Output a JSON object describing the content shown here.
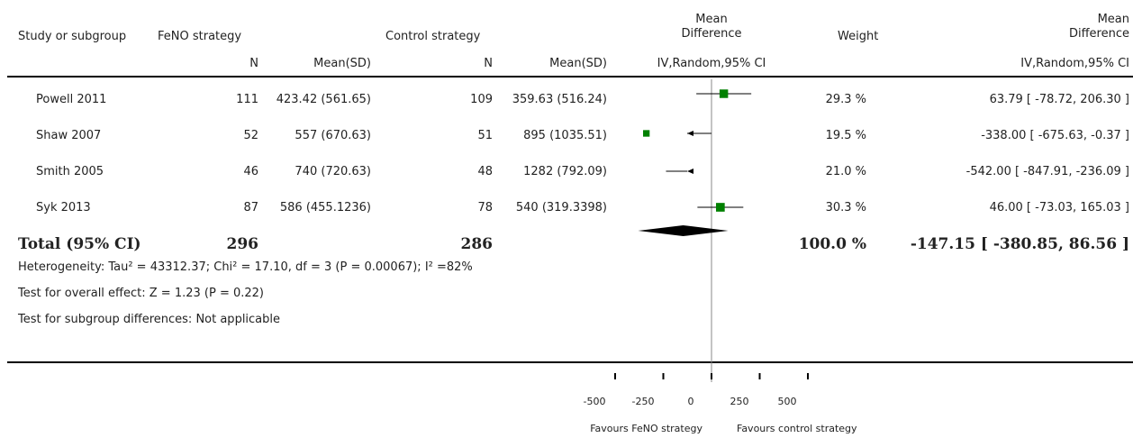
{
  "header": {
    "study": "Study or subgroup",
    "fenoGroup": "FeNO strategy",
    "controlGroup": "Control strategy",
    "md1": "Mean",
    "md2": "Difference",
    "weight": "Weight",
    "mdR1": "Mean",
    "mdR2": "Difference",
    "n1": "N",
    "meansd1": "Mean(SD)",
    "n2": "N",
    "meansd2": "Mean(SD)",
    "method": "IV,Random,95% CI",
    "methodR": "IV,Random,95% CI"
  },
  "studies": [
    {
      "name": "Powell 2011",
      "n1": "111",
      "ms1": "423.42 (561.65)",
      "n2": "109",
      "ms2": "359.63 (516.24)",
      "weight": "29.3 %",
      "ci": "63.79 [ -78.72, 206.30 ]"
    },
    {
      "name": "Shaw 2007",
      "n1": "52",
      "ms1": "557 (670.63)",
      "n2": "51",
      "ms2": "895 (1035.51)",
      "weight": "19.5 %",
      "ci": "-338.00 [ -675.63, -0.37 ]"
    },
    {
      "name": "Smith 2005",
      "n1": "46",
      "ms1": "740 (720.63)",
      "n2": "48",
      "ms2": "1282 (792.09)",
      "weight": "21.0 %",
      "ci": "-542.00 [ -847.91, -236.09 ]"
    },
    {
      "name": "Syk 2013",
      "n1": "87",
      "ms1": "586 (455.1236)",
      "n2": "78",
      "ms2": "540 (319.3398)",
      "weight": "30.3 %",
      "ci": "46.00 [ -73.03, 165.03 ]"
    }
  ],
  "total": {
    "label": "Total (95% CI)",
    "n1": "296",
    "n2": "286",
    "weight": "100.0 %",
    "ci": "-147.15 [ -380.85, 86.56 ]"
  },
  "notes": {
    "heterogeneity": "Heterogeneity: Tau² = 43312.37; Chi² = 17.10, df = 3 (P = 0.00067); I² =82%",
    "overall": "Test for overall effect: Z = 1.23 (P = 0.22)",
    "subgroup": "Test for subgroup differences: Not applicable"
  },
  "axis": {
    "favours_left": "Favours FeNO strategy",
    "favours_right": "Favours control strategy"
  },
  "chart_data": {
    "type": "scatter",
    "subtype": "forest-plot",
    "xlim": [
      -500,
      500
    ],
    "xticks": [
      -500,
      -250,
      0,
      250,
      500
    ],
    "series": [
      {
        "study": "Powell 2011",
        "estimate": 63.79,
        "lower": -78.72,
        "upper": 206.3,
        "weight": 29.3
      },
      {
        "study": "Shaw 2007",
        "estimate": -338.0,
        "lower": -675.63,
        "upper": -0.37,
        "weight": 19.5
      },
      {
        "study": "Smith 2005",
        "estimate": -542.0,
        "lower": -847.91,
        "upper": -236.09,
        "weight": 21.0
      },
      {
        "study": "Syk 2013",
        "estimate": 46.0,
        "lower": -73.03,
        "upper": 165.03,
        "weight": 30.3
      }
    ],
    "pooled": {
      "estimate": -147.15,
      "lower": -380.85,
      "upper": 86.56
    },
    "marker_color": "#008000"
  }
}
